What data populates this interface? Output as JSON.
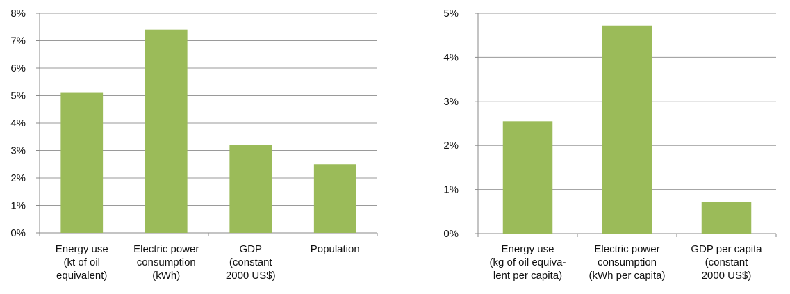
{
  "bar_color": "#9bbb59",
  "chart_data": [
    {
      "type": "bar",
      "title": "",
      "xlabel": "",
      "ylabel": "",
      "ylim": [
        0,
        8
      ],
      "y_ticks": [
        "0%",
        "1%",
        "2%",
        "3%",
        "4%",
        "5%",
        "6%",
        "7%",
        "8%"
      ],
      "grid": true,
      "categories": [
        [
          "Energy use",
          "(kt of oil",
          "equivalent)"
        ],
        [
          "Electric power",
          "consumption",
          "(kWh)"
        ],
        [
          "GDP",
          "(constant",
          "2000 US$)"
        ],
        [
          "Population"
        ]
      ],
      "values": [
        5.1,
        7.4,
        3.2,
        2.5
      ]
    },
    {
      "type": "bar",
      "title": "",
      "xlabel": "",
      "ylabel": "",
      "ylim": [
        0,
        5
      ],
      "y_ticks": [
        "0%",
        "1%",
        "2%",
        "3%",
        "4%",
        "5%"
      ],
      "grid": true,
      "categories": [
        [
          "Energy use",
          "(kg of oil equiva-",
          "lent per capita)"
        ],
        [
          "Electric power",
          "consumption",
          "(kWh per capita)"
        ],
        [
          "GDP per capita",
          "(constant",
          "2000 US$)"
        ]
      ],
      "values": [
        2.55,
        4.72,
        0.72
      ]
    }
  ]
}
